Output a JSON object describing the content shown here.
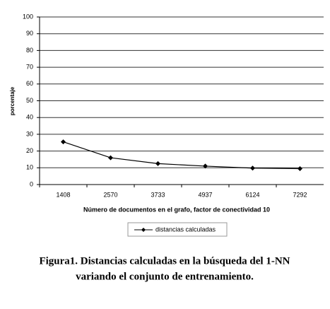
{
  "chart_data": {
    "type": "line",
    "y_label": "porcentaje",
    "x_label": "Número de documentos en el grafo, factor de conectividad 10",
    "categories": [
      "1408",
      "2570",
      "3733",
      "4937",
      "6124",
      "7292"
    ],
    "series": [
      {
        "name": "distancias calculadas",
        "color": "#000000",
        "values": [
          25.5,
          16,
          12.5,
          11,
          9.8,
          9.5
        ]
      }
    ],
    "ylim": [
      0,
      100
    ],
    "yticks": [
      0,
      10,
      20,
      30,
      40,
      50,
      60,
      70,
      80,
      90,
      100
    ],
    "grid": true
  },
  "caption": [
    "Figura1. Distancias calculadas en la búsqueda del 1-NN",
    "variando el conjunto de entrenamiento."
  ]
}
